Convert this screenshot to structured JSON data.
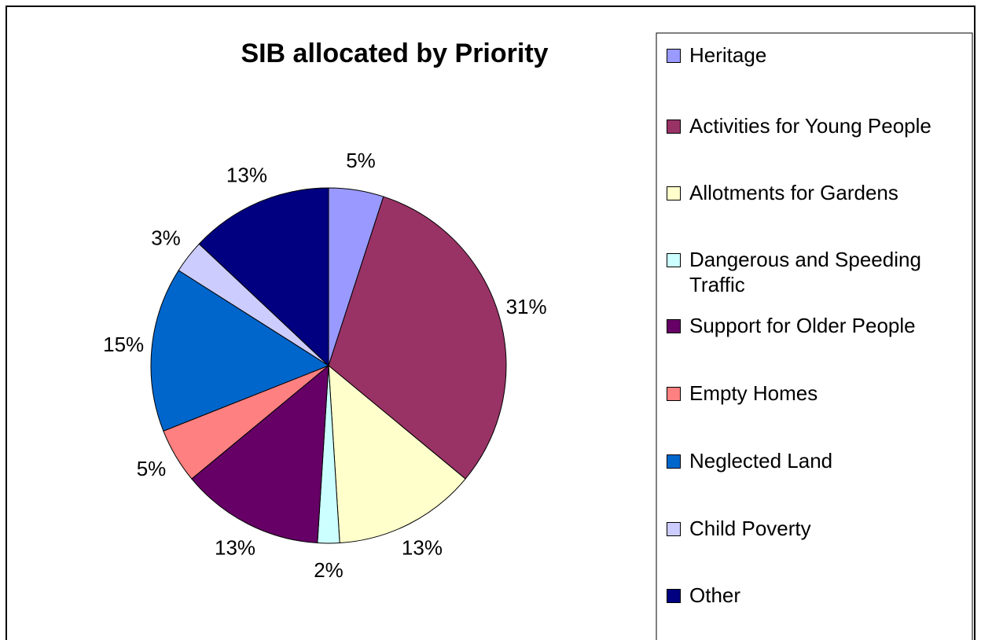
{
  "chart_data": {
    "type": "pie",
    "title": "SIB allocated by Priority",
    "categories": [
      "Heritage",
      "Activities for Young People",
      "Allotments for Gardens",
      "Dangerous and Speeding Traffic",
      "Support for Older People",
      "Empty Homes",
      "Neglected Land",
      "Child Poverty",
      "Other"
    ],
    "values": [
      5,
      31,
      13,
      2,
      13,
      5,
      15,
      3,
      13
    ],
    "value_labels": [
      "5%",
      "31%",
      "13%",
      "2%",
      "13%",
      "5%",
      "15%",
      "3%",
      "13%"
    ],
    "colors": [
      "#9999ff",
      "#993366",
      "#ffffcc",
      "#ccffff",
      "#660066",
      "#ff8080",
      "#0066cc",
      "#ccccff",
      "#000080"
    ],
    "legend": "right"
  }
}
